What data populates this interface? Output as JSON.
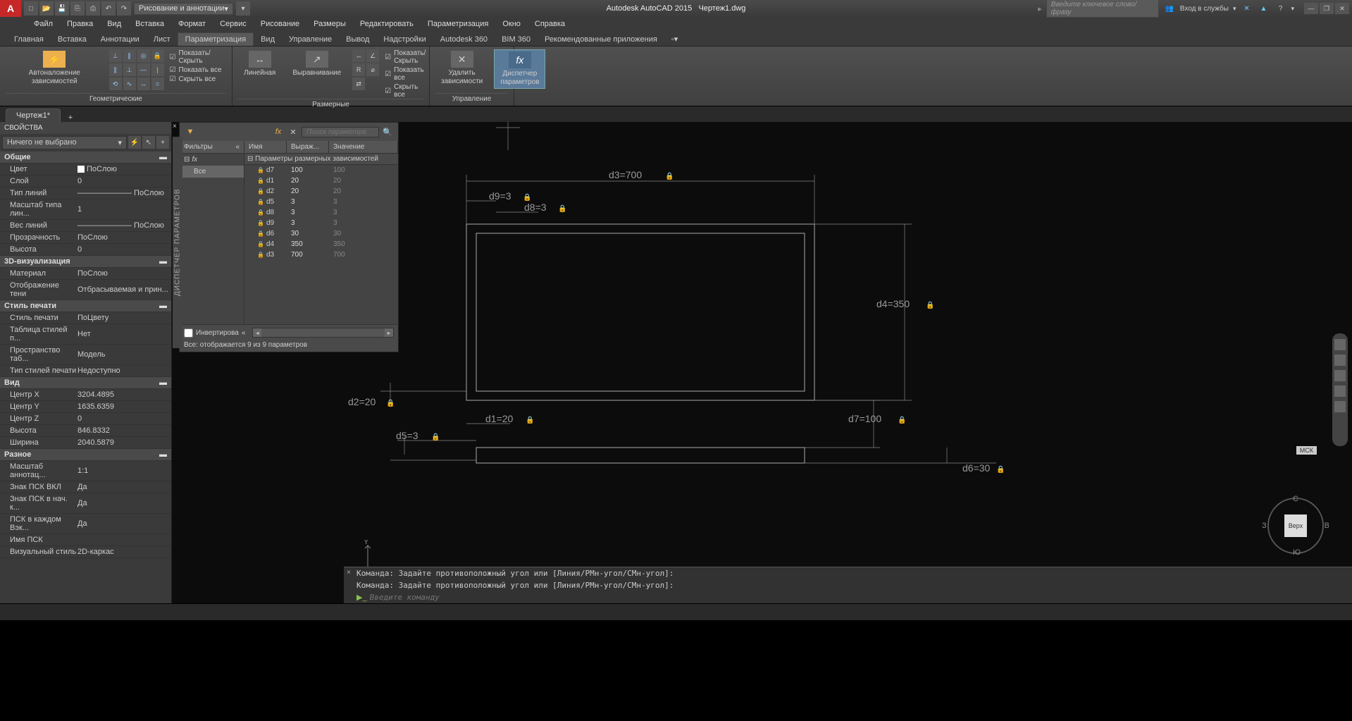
{
  "title": {
    "app": "Autodesk AutoCAD 2015",
    "doc": "Чертеж1.dwg"
  },
  "workspace_dropdown": "Рисование и аннотации",
  "search_placeholder": "Введите ключевое слово/фразу",
  "signin_label": "Вход в службы",
  "menu": [
    "Файл",
    "Правка",
    "Вид",
    "Вставка",
    "Формат",
    "Сервис",
    "Рисование",
    "Размеры",
    "Редактировать",
    "Параметризация",
    "Окно",
    "Справка"
  ],
  "ribbon_tabs": [
    "Главная",
    "Вставка",
    "Аннотации",
    "Лист",
    "Параметризация",
    "Вид",
    "Управление",
    "Вывод",
    "Надстройки",
    "Autodesk 360",
    "BIM 360",
    "Рекомендованные приложения"
  ],
  "ribbon_active_tab": 4,
  "ribbon": {
    "panel_geom": {
      "title": "Геометрические",
      "big_label": "Автоналожение зависимостей",
      "checks": [
        "Показать/Скрыть",
        "Показать все",
        "Скрыть все"
      ]
    },
    "panel_dim": {
      "title": "Размерные",
      "btn_linear": "Линейная",
      "btn_align": "Выравнивание",
      "checks": [
        "Показать/Скрыть",
        "Показать все",
        "Скрыть все"
      ]
    },
    "panel_manage": {
      "title": "Управление",
      "btn_delete": "Удалить\nзависимости",
      "btn_manager": "Диспетчер\nпараметров"
    }
  },
  "doc_tab": "Чертеж1*",
  "props": {
    "title": "СВОЙСТВА",
    "selector": "Ничего не выбрано",
    "sections": [
      {
        "name": "Общие",
        "rows": [
          {
            "label": "Цвет",
            "value": "ПоСлою",
            "swatch": true
          },
          {
            "label": "Слой",
            "value": "0"
          },
          {
            "label": "Тип линий",
            "value": "——————— ПоСлою"
          },
          {
            "label": "Масштаб типа лин...",
            "value": "1"
          },
          {
            "label": "Вес линий",
            "value": "——————— ПоСлою"
          },
          {
            "label": "Прозрачность",
            "value": "ПоСлою"
          },
          {
            "label": "Высота",
            "value": "0"
          }
        ]
      },
      {
        "name": "3D-визуализация",
        "rows": [
          {
            "label": "Материал",
            "value": "ПоСлою"
          },
          {
            "label": "Отображение тени",
            "value": "Отбрасываемая и прин..."
          }
        ]
      },
      {
        "name": "Стиль печати",
        "rows": [
          {
            "label": "Стиль печати",
            "value": "ПоЦвету"
          },
          {
            "label": "Таблица стилей п...",
            "value": "Нет"
          },
          {
            "label": "Пространство таб...",
            "value": "Модель"
          },
          {
            "label": "Тип стилей печати",
            "value": "Недоступно"
          }
        ]
      },
      {
        "name": "Вид",
        "rows": [
          {
            "label": "Центр X",
            "value": "3204.4895"
          },
          {
            "label": "Центр Y",
            "value": "1635.6359"
          },
          {
            "label": "Центр Z",
            "value": "0"
          },
          {
            "label": "Высота",
            "value": "846.8332"
          },
          {
            "label": "Ширина",
            "value": "2040.5879"
          }
        ]
      },
      {
        "name": "Разное",
        "rows": [
          {
            "label": "Масштаб аннотац...",
            "value": "1:1"
          },
          {
            "label": "Знак ПСК ВКЛ",
            "value": "Да"
          },
          {
            "label": "Знак ПСК в нач. к...",
            "value": "Да"
          },
          {
            "label": "ПСК в каждом Вэк...",
            "value": "Да"
          },
          {
            "label": "Имя ПСК",
            "value": ""
          },
          {
            "label": "Визуальный стиль",
            "value": "2D-каркас"
          }
        ]
      }
    ]
  },
  "params_mgr": {
    "side_label": "ДИСПЕТЧЕР ПАРАМЕТРОВ",
    "search_placeholder": "Поиск параметра",
    "filters_hdr": "Фильтры",
    "filters_all": "Все",
    "col_name": "Имя",
    "col_expr": "Выраж...",
    "col_value": "Значение",
    "group": "Параметры размерных зависимостей",
    "rows": [
      {
        "name": "d7",
        "expr": "100",
        "value": "100"
      },
      {
        "name": "d1",
        "expr": "20",
        "value": "20"
      },
      {
        "name": "d2",
        "expr": "20",
        "value": "20"
      },
      {
        "name": "d5",
        "expr": "3",
        "value": "3"
      },
      {
        "name": "d8",
        "expr": "3",
        "value": "3"
      },
      {
        "name": "d9",
        "expr": "3",
        "value": "3"
      },
      {
        "name": "d6",
        "expr": "30",
        "value": "30"
      },
      {
        "name": "d4",
        "expr": "350",
        "value": "350"
      },
      {
        "name": "d3",
        "expr": "700",
        "value": "700"
      }
    ],
    "invert": "Инвертирова",
    "status": "Все: отображается 9 из 9 параметров"
  },
  "drawing": {
    "dims": {
      "d3": "d3=700",
      "d9": "d9=3",
      "d8": "d8=3",
      "d4": "d4=350",
      "d2": "d2=20",
      "d1": "d1=20",
      "d7": "d7=100",
      "d5": "d5=3",
      "d6": "d6=30"
    },
    "wcs": "МСК",
    "viewcube_face": "Верх",
    "vc_n": "С",
    "vc_s": "Ю",
    "vc_e": "В",
    "vc_w": "З"
  },
  "cmd": {
    "history1": "Команда: Задайте противоположный угол или [Линия/РМн-угол/СМн-угол]:",
    "history2": "Команда: Задайте противоположный угол или [Линия/РМн-угол/СМн-угол]:",
    "placeholder": "Введите команду"
  },
  "colors": {
    "canvas_bg": "#0c0c0c",
    "dim_text": "#9a9a9a",
    "accent": "#5a7a9a"
  }
}
